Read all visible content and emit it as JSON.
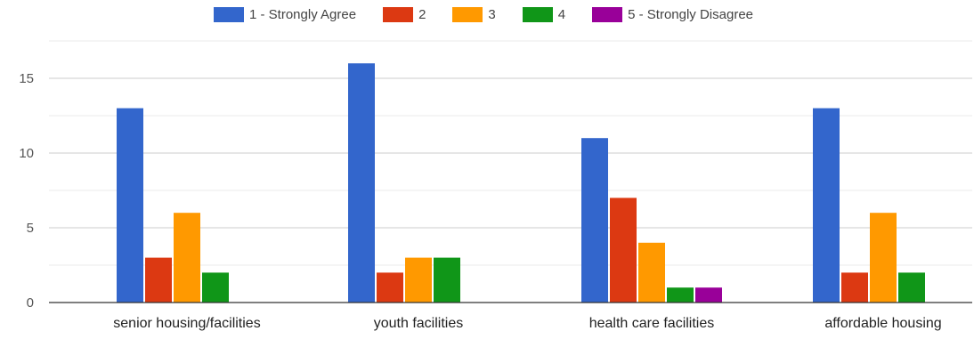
{
  "chart_data": {
    "type": "bar",
    "categories": [
      "senior housing/facilities",
      "youth facilities",
      "health care facilities",
      "affordable housing"
    ],
    "series": [
      {
        "name": "1 - Strongly Agree",
        "color": "#3366cc",
        "values": [
          13,
          16,
          11,
          13
        ]
      },
      {
        "name": "2",
        "color": "#dc3912",
        "values": [
          3,
          2,
          7,
          2
        ]
      },
      {
        "name": "3",
        "color": "#ff9900",
        "values": [
          6,
          3,
          4,
          6
        ]
      },
      {
        "name": "4",
        "color": "#109618",
        "values": [
          2,
          3,
          1,
          2
        ]
      },
      {
        "name": "5 - Strongly Disagree",
        "color": "#990099",
        "values": [
          0,
          0,
          1,
          0
        ]
      }
    ],
    "y_ticks": [
      0,
      5,
      10,
      15
    ],
    "ylim": [
      0,
      17.5
    ],
    "grid": true,
    "legend_position": "top",
    "title": "",
    "xlabel": "",
    "ylabel": ""
  }
}
